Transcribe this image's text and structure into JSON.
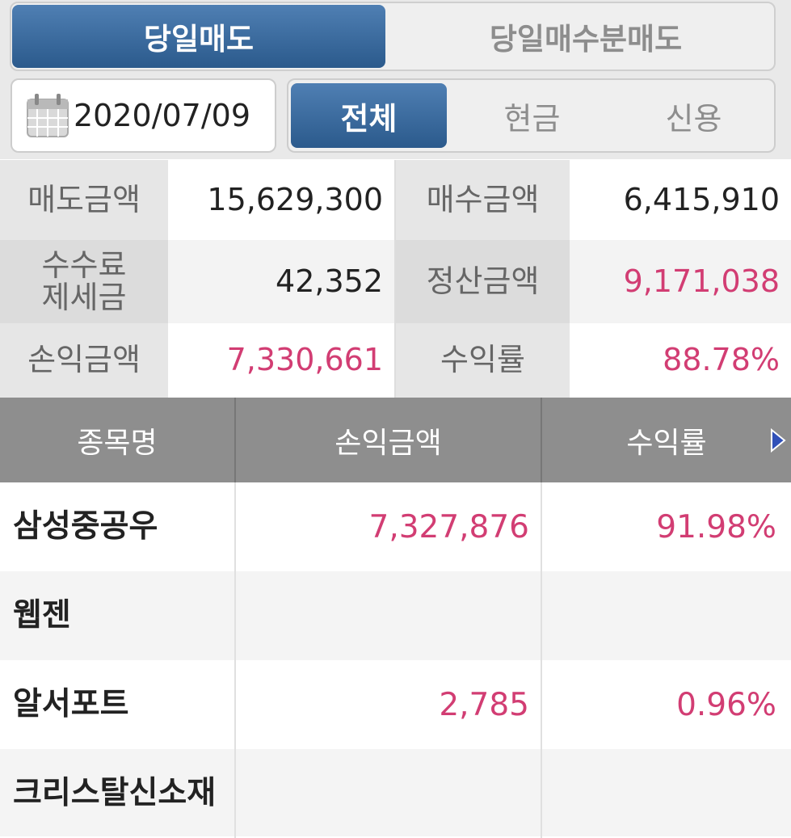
{
  "tabs": {
    "items": [
      "당일매도",
      "당일매수분매도"
    ],
    "active": 0
  },
  "date": "2020/07/09",
  "filters": {
    "items": [
      "전체",
      "현금",
      "신용"
    ],
    "active": 0
  },
  "summary": [
    [
      {
        "label": "매도금액",
        "value": "15,629,300"
      },
      {
        "label": "매수금액",
        "value": "6,415,910"
      }
    ],
    [
      {
        "label": "수수료\n제세금",
        "value": "42,352"
      },
      {
        "label": "정산금액",
        "value": "9,171,038"
      }
    ],
    [
      {
        "label": "손익금액",
        "value": "7,330,661"
      },
      {
        "label": "수익률",
        "value": "88.78%"
      }
    ]
  ],
  "table": {
    "headers": [
      "종목명",
      "손익금액",
      "수익률"
    ],
    "rows": [
      {
        "name": "삼성중공우",
        "profit": "7,327,876",
        "rate": "91.98%"
      },
      {
        "name": "웹젠"
      },
      {
        "name": "알서포트",
        "profit": "2,785",
        "rate": "0.96%"
      },
      {
        "name": "크리스탈신소재"
      }
    ]
  }
}
